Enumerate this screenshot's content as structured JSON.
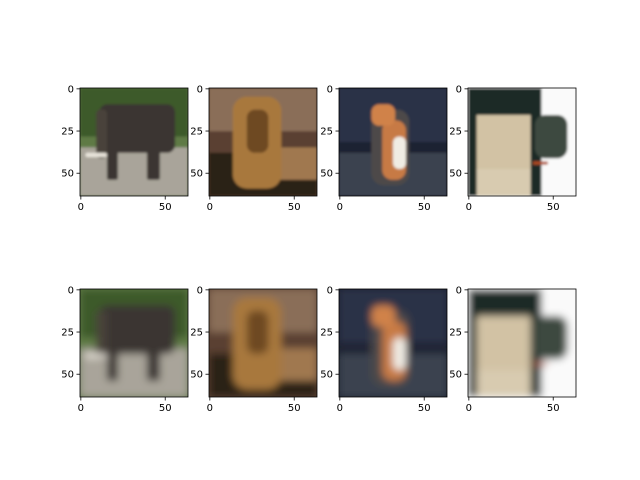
{
  "chart_data": [
    {
      "type": "image",
      "xlim": [
        -0.5,
        63.5
      ],
      "ylim": [
        63.5,
        -0.5
      ],
      "xticks": [
        0,
        50
      ],
      "yticks": [
        0,
        25,
        50
      ]
    },
    {
      "type": "image",
      "xlim": [
        -0.5,
        63.5
      ],
      "ylim": [
        63.5,
        -0.5
      ],
      "xticks": [
        0,
        50
      ],
      "yticks": [
        0,
        25,
        50
      ]
    },
    {
      "type": "image",
      "xlim": [
        -0.5,
        63.5
      ],
      "ylim": [
        63.5,
        -0.5
      ],
      "xticks": [
        0,
        50
      ],
      "yticks": [
        0,
        25,
        50
      ]
    },
    {
      "type": "image",
      "xlim": [
        -0.5,
        63.5
      ],
      "ylim": [
        63.5,
        -0.5
      ],
      "xticks": [
        0,
        50
      ],
      "yticks": [
        0,
        25,
        50
      ]
    },
    {
      "type": "image",
      "xlim": [
        -0.5,
        63.5
      ],
      "ylim": [
        63.5,
        -0.5
      ],
      "xticks": [
        0,
        50
      ],
      "yticks": [
        0,
        25,
        50
      ]
    },
    {
      "type": "image",
      "xlim": [
        -0.5,
        63.5
      ],
      "ylim": [
        63.5,
        -0.5
      ],
      "xticks": [
        0,
        50
      ],
      "yticks": [
        0,
        25,
        50
      ]
    },
    {
      "type": "image",
      "xlim": [
        -0.5,
        63.5
      ],
      "ylim": [
        63.5,
        -0.5
      ],
      "xticks": [
        0,
        50
      ],
      "yticks": [
        0,
        25,
        50
      ]
    },
    {
      "type": "image",
      "xlim": [
        -0.5,
        63.5
      ],
      "ylim": [
        63.5,
        -0.5
      ],
      "xticks": [
        0,
        50
      ],
      "yticks": [
        0,
        25,
        50
      ]
    }
  ]
}
